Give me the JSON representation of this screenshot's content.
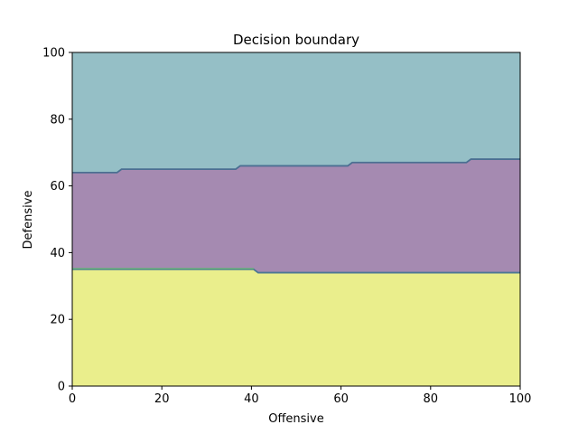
{
  "chart_data": {
    "type": "area",
    "title": "Decision boundary",
    "xlabel": "Offensive",
    "ylabel": "Defensive",
    "xlim": [
      0,
      100
    ],
    "ylim": [
      0,
      100
    ],
    "xticks": [
      0,
      20,
      40,
      60,
      80,
      100
    ],
    "yticks": [
      0,
      20,
      40,
      60,
      80,
      100
    ],
    "xtick_labels": [
      "0",
      "20",
      "40",
      "60",
      "80",
      "100"
    ],
    "ytick_labels": [
      "0",
      "20",
      "40",
      "60",
      "80",
      "100"
    ],
    "grid": false,
    "regions": [
      {
        "id": "top",
        "color": "#95bfc6",
        "region": "above upper boundary"
      },
      {
        "id": "middle",
        "color": "#a58ab1",
        "region": "between boundaries"
      },
      {
        "id": "bottom",
        "color": "#eaee8c",
        "region": "below lower boundary"
      }
    ],
    "boundaries": [
      {
        "id": "upper",
        "color": "#4b6f92",
        "points": [
          [
            0,
            64
          ],
          [
            10,
            64
          ],
          [
            11,
            65
          ],
          [
            36.5,
            65
          ],
          [
            37.5,
            66
          ],
          [
            61.5,
            66
          ],
          [
            62.5,
            67
          ],
          [
            88,
            67
          ],
          [
            89,
            68
          ],
          [
            100,
            68
          ]
        ]
      },
      {
        "id": "lower",
        "color": "#4d7894",
        "points": [
          [
            0,
            35
          ],
          [
            40.5,
            35
          ],
          [
            41.5,
            34
          ],
          [
            100,
            34
          ]
        ]
      },
      {
        "id": "lower-accent",
        "color": "#5ab870",
        "points": [
          [
            0,
            35.2
          ],
          [
            40.5,
            35.2
          ]
        ]
      }
    ]
  }
}
